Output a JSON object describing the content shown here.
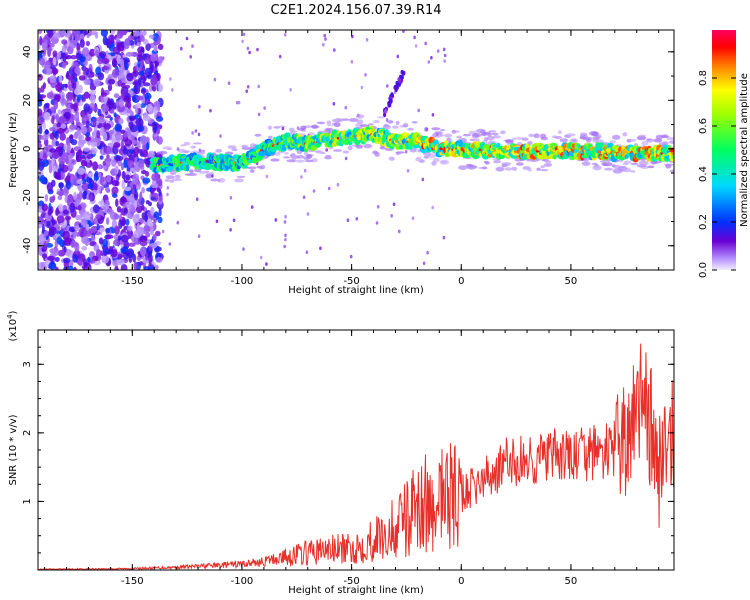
{
  "title": "C2E1.2024.156.07.39.R14",
  "chart_data": [
    {
      "type": "heatmap",
      "xlabel": "Height of straight line (km)",
      "ylabel": "Frequency (Hz)",
      "xlim": [
        -193,
        97
      ],
      "ylim": [
        -50,
        49
      ],
      "x_ticks": [
        "-150",
        "-100",
        "-50",
        "0",
        "50"
      ],
      "y_ticks": [
        "-40",
        "-20",
        "0",
        "20",
        "40"
      ],
      "colorbar": {
        "label": "Normalized spectral amplitude",
        "range": [
          0,
          1
        ],
        "ticks": [
          "0.0",
          "0.2",
          "0.4",
          "0.6",
          "0.8"
        ]
      },
      "ridge": {
        "x": [
          -140,
          -120,
          -100,
          -90,
          -80,
          -70,
          -60,
          -50,
          -40,
          -30,
          -20,
          -10,
          0,
          20,
          40,
          60,
          80,
          95
        ],
        "y": [
          -7,
          -5,
          -6,
          0,
          3,
          2,
          4,
          5,
          6,
          3,
          3,
          0,
          0,
          -1,
          -1,
          -1,
          -2,
          -2
        ]
      },
      "noise_region_x": [
        -193,
        -137
      ],
      "echo": {
        "x": [
          -35,
          -26
        ],
        "y": [
          15,
          32
        ]
      }
    },
    {
      "type": "line",
      "xlabel": "Height of straight line (km)",
      "ylabel": "SNR (10 * v/v)",
      "y_multiplier": "(x10",
      "y_multiplier_exp": "4",
      "y_multiplier_close": ")",
      "xlim": [
        -193,
        97
      ],
      "ylim": [
        0,
        35000
      ],
      "x_ticks": [
        "-150",
        "-100",
        "-50",
        "0",
        "50"
      ],
      "y_ticks": [
        "1",
        "2",
        "3"
      ],
      "series": [
        {
          "color": "#e8302a",
          "x": [
            -193,
            -150,
            -130,
            -110,
            -100,
            -90,
            -80,
            -70,
            -60,
            -50,
            -40,
            -30,
            -20,
            -10,
            0,
            10,
            20,
            30,
            40,
            50,
            60,
            70,
            80,
            85,
            90,
            97
          ],
          "y": [
            100,
            200,
            400,
            700,
            900,
            1200,
            2000,
            2500,
            3000,
            3000,
            4500,
            6000,
            9000,
            11000,
            11000,
            13000,
            15500,
            16000,
            16500,
            16500,
            17000,
            17500,
            20000,
            23000,
            17000,
            20000
          ]
        }
      ]
    }
  ]
}
